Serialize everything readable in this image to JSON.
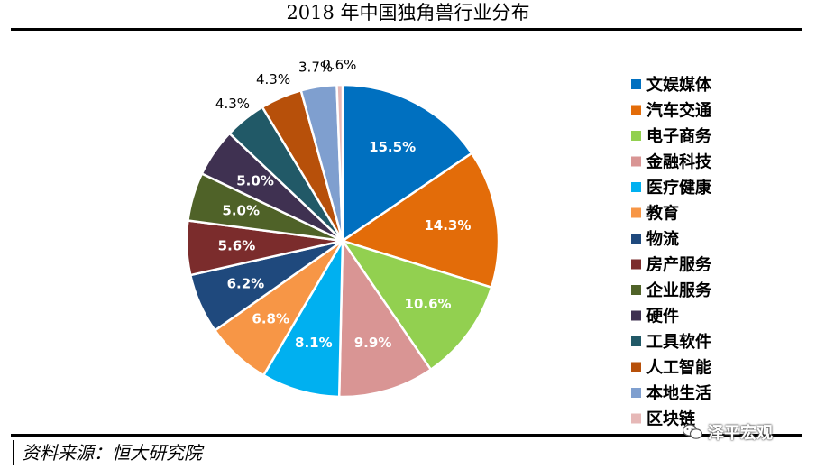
{
  "title": "2018 年中国独角兽行业分布",
  "source": "资料来源：恒大研究院",
  "watermark": "泽平宏观",
  "chart_data": {
    "type": "pie",
    "title": "2018 年中国独角兽行业分布",
    "legend_position": "right",
    "slices": [
      {
        "label": "文娱媒体",
        "value": 15.5,
        "display": "15.5%",
        "color": "#0070C0"
      },
      {
        "label": "汽车交通",
        "value": 14.3,
        "display": "14.3%",
        "color": "#E36C09"
      },
      {
        "label": "电子商务",
        "value": 10.6,
        "display": "10.6%",
        "color": "#92D050"
      },
      {
        "label": "金融科技",
        "value": 9.9,
        "display": "9.9%",
        "color": "#D99594"
      },
      {
        "label": "医疗健康",
        "value": 8.1,
        "display": "8.1%",
        "color": "#00B0F0"
      },
      {
        "label": "教育",
        "value": 6.8,
        "display": "6.8%",
        "color": "#F79646"
      },
      {
        "label": "物流",
        "value": 6.2,
        "display": "6.2%",
        "color": "#1F497D"
      },
      {
        "label": "房产服务",
        "value": 5.6,
        "display": "5.6%",
        "color": "#7B2C2C"
      },
      {
        "label": "企业服务",
        "value": 5.0,
        "display": "5.0%",
        "color": "#4F6228"
      },
      {
        "label": "硬件",
        "value": 5.0,
        "display": "5.0%",
        "color": "#3F3151"
      },
      {
        "label": "工具软件",
        "value": 4.3,
        "display": "4.3%",
        "color": "#215967"
      },
      {
        "label": "人工智能",
        "value": 4.3,
        "display": "4.3%",
        "color": "#B7500A"
      },
      {
        "label": "本地生活",
        "value": 3.7,
        "display": "3.7%",
        "color": "#7F9FCF"
      },
      {
        "label": "区块链",
        "value": 0.6,
        "display": "0.6%",
        "color": "#E6B8B7"
      }
    ]
  }
}
